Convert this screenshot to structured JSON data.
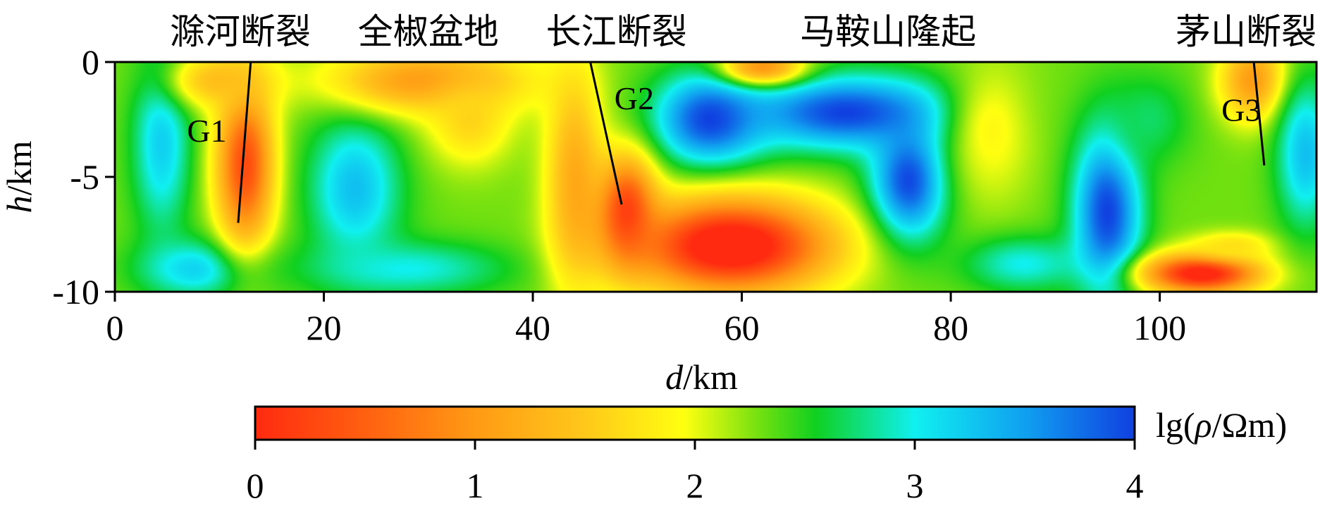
{
  "chart_data": {
    "type": "heatmap",
    "xlabel": {
      "var": "d",
      "unit": "/km"
    },
    "ylabel": {
      "var": "h",
      "unit": "/km"
    },
    "xlim": [
      0,
      115
    ],
    "ylim": [
      -10,
      0
    ],
    "x_ticks": [
      0,
      20,
      40,
      60,
      80,
      100
    ],
    "y_ticks": [
      0,
      -5,
      -10
    ],
    "x_tick_labels": [
      "0",
      "20",
      "40",
      "60",
      "80",
      "100"
    ],
    "y_tick_labels": [
      "0",
      "-5",
      "-10"
    ],
    "top_labels": [
      {
        "text": "滁河断裂",
        "x": 12
      },
      {
        "text": "全椒盆地",
        "x": 30
      },
      {
        "text": "长江断裂",
        "x": 48
      },
      {
        "text": "马鞍山隆起",
        "x": 74
      },
      {
        "text": "茅山断裂",
        "x": 109
      }
    ],
    "faults": [
      {
        "name": "G1",
        "x1": 13,
        "y1": 0,
        "x2": 11.8,
        "y2": -7.0,
        "label_x": 8.8,
        "label_y": -3.0
      },
      {
        "name": "G2",
        "x1": 45.5,
        "y1": 0,
        "x2": 48.5,
        "y2": -6.2,
        "label_x": 49.7,
        "label_y": -1.6
      },
      {
        "name": "G3",
        "x1": 109,
        "y1": 0,
        "x2": 110,
        "y2": -4.5,
        "label_x": 107.8,
        "label_y": -2.1
      }
    ],
    "colorbar": {
      "label": {
        "prefix": "lg(",
        "sym": "ρ",
        "suffix": "/Ωm)"
      },
      "range": [
        0,
        4
      ],
      "ticks": [
        0,
        1,
        2,
        3,
        4
      ],
      "tick_labels": [
        "0",
        "1",
        "2",
        "3",
        "4"
      ],
      "stops": [
        {
          "v": 0.0,
          "color": "#ff2a10"
        },
        {
          "v": 0.5,
          "color": "#ff6010"
        },
        {
          "v": 1.0,
          "color": "#ff9a14"
        },
        {
          "v": 1.5,
          "color": "#ffc81a"
        },
        {
          "v": 1.95,
          "color": "#ffff10"
        },
        {
          "v": 2.3,
          "color": "#70e010"
        },
        {
          "v": 2.55,
          "color": "#10d020"
        },
        {
          "v": 3.0,
          "color": "#10f0f0"
        },
        {
          "v": 3.5,
          "color": "#10a0f0"
        },
        {
          "v": 4.0,
          "color": "#1040e0"
        }
      ]
    },
    "grid": false,
    "field": {
      "background": 2.3,
      "anomalies": [
        {
          "x": 4.5,
          "y": -3.5,
          "rx": 3.5,
          "ry": 5.0,
          "v": 3.2
        },
        {
          "x": 8,
          "y": -9.0,
          "rx": 7,
          "ry": 1.6,
          "v": 3.2
        },
        {
          "x": 12.5,
          "y": -4.5,
          "rx": 3.5,
          "ry": 4.5,
          "v": 0.3
        },
        {
          "x": 10,
          "y": -0.8,
          "rx": 6,
          "ry": 1.5,
          "v": 1.4
        },
        {
          "x": 23,
          "y": -5.5,
          "rx": 5.5,
          "ry": 4.0,
          "v": 3.3
        },
        {
          "x": 28,
          "y": -9.0,
          "rx": 12,
          "ry": 1.5,
          "v": 3.0
        },
        {
          "x": 30,
          "y": -0.8,
          "rx": 12,
          "ry": 1.8,
          "v": 1.0
        },
        {
          "x": 34,
          "y": -2.5,
          "rx": 5,
          "ry": 2.5,
          "v": 1.6
        },
        {
          "x": 44,
          "y": -5.0,
          "rx": 3.5,
          "ry": 6.0,
          "v": 1.2
        },
        {
          "x": 57,
          "y": -2.5,
          "rx": 6.5,
          "ry": 2.5,
          "v": 4.0
        },
        {
          "x": 70,
          "y": -2.2,
          "rx": 12,
          "ry": 2.0,
          "v": 4.0
        },
        {
          "x": 76,
          "y": -5.2,
          "rx": 4.5,
          "ry": 3.2,
          "v": 4.0
        },
        {
          "x": 59,
          "y": -8.0,
          "rx": 12,
          "ry": 2.6,
          "v": -0.4
        },
        {
          "x": 49,
          "y": -6.5,
          "rx": 3.5,
          "ry": 3.0,
          "v": 0.2
        },
        {
          "x": 62,
          "y": -0.2,
          "rx": 5,
          "ry": 1.0,
          "v": 1.0
        },
        {
          "x": 84,
          "y": -3.0,
          "rx": 5,
          "ry": 4.0,
          "v": 1.9
        },
        {
          "x": 87,
          "y": -8.8,
          "rx": 7,
          "ry": 1.5,
          "v": 3.0
        },
        {
          "x": 95,
          "y": -6.5,
          "rx": 4,
          "ry": 4.5,
          "v": 4.0
        },
        {
          "x": 99,
          "y": -2.5,
          "rx": 5,
          "ry": 2.5,
          "v": 2.7
        },
        {
          "x": 109,
          "y": -0.8,
          "rx": 4,
          "ry": 2.2,
          "v": 1.0
        },
        {
          "x": 104,
          "y": -9.2,
          "rx": 7,
          "ry": 1.1,
          "v": -0.2
        },
        {
          "x": 107,
          "y": -8.0,
          "rx": 5,
          "ry": 0.8,
          "v": 1.7
        },
        {
          "x": 114,
          "y": -4.0,
          "rx": 3.5,
          "ry": 4.0,
          "v": 3.3
        }
      ]
    }
  }
}
